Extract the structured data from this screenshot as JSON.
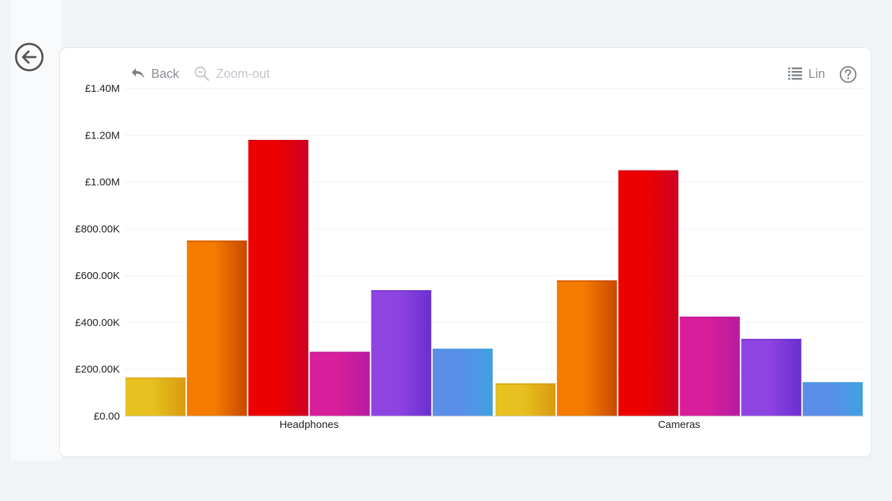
{
  "toolbar": {
    "back_label": "Back",
    "zoom_out_label": "Zoom-out",
    "scale_label": "Lin"
  },
  "icons": {
    "nav_back": "circle-arrow-left-icon",
    "back": "undo-arrow-icon",
    "zoom_out": "magnifier-minus-icon",
    "scale": "list-lines-icon",
    "help": "question-circle-icon"
  },
  "chart_data": {
    "type": "bar",
    "categories": [
      "Headphones",
      "Cameras"
    ],
    "y_ticks": [
      "£0.00",
      "£200.00K",
      "£400.00K",
      "£600.00K",
      "£800.00K",
      "£1.00M",
      "£1.20M",
      "£1.40M"
    ],
    "ylim": [
      0,
      1400000
    ],
    "grid": true,
    "legend": "none",
    "series": [
      {
        "values": [
          165000,
          140000
        ],
        "color": "#e6c11f",
        "color_dark": "#d99a10"
      },
      {
        "values": [
          750000,
          580000
        ],
        "color": "#f57c00",
        "color_dark": "#c94800"
      },
      {
        "values": [
          1180000,
          1050000
        ],
        "color": "#ee0000",
        "color_dark": "#cc0022"
      },
      {
        "values": [
          275000,
          425000
        ],
        "color": "#d81e9b",
        "color_dark": "#b71c9f"
      },
      {
        "values": [
          538000,
          330000
        ],
        "color": "#8e44e0",
        "color_dark": "#6a2fd0"
      },
      {
        "values": [
          288000,
          145000
        ],
        "color": "#5a8ee8",
        "color_dark": "#3fa2e0"
      }
    ]
  }
}
